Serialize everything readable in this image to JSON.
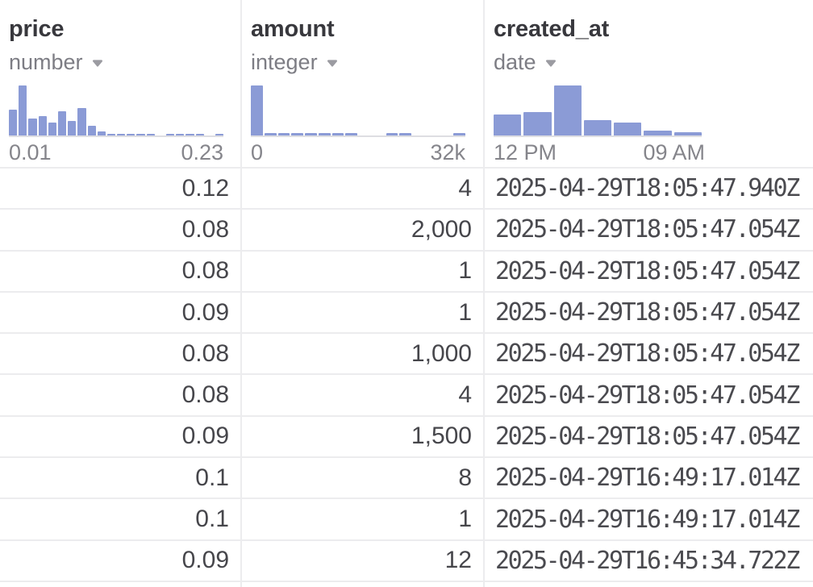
{
  "columns": [
    {
      "name": "price",
      "type": "number",
      "min_label": "0.01",
      "max_label": "0.23",
      "values": [
        "0.12",
        "0.08",
        "0.08",
        "0.09",
        "0.08",
        "0.08",
        "0.09",
        "0.1",
        "0.1",
        "0.09"
      ]
    },
    {
      "name": "amount",
      "type": "integer",
      "min_label": "0",
      "max_label": "32k",
      "values": [
        "4",
        "2,000",
        "1",
        "1",
        "1,000",
        "4",
        "1,500",
        "8",
        "1",
        "12"
      ]
    },
    {
      "name": "created_at",
      "type": "date",
      "min_label": "12 PM",
      "max_label": "09 AM",
      "values": [
        "2025-04-29T18:05:47.940Z",
        "2025-04-29T18:05:47.054Z",
        "2025-04-29T18:05:47.054Z",
        "2025-04-29T18:05:47.054Z",
        "2025-04-29T18:05:47.054Z",
        "2025-04-29T18:05:47.054Z",
        "2025-04-29T18:05:47.054Z",
        "2025-04-29T16:49:17.014Z",
        "2025-04-29T16:49:17.014Z",
        "2025-04-29T16:45:34.722Z"
      ]
    }
  ],
  "chart_data": [
    {
      "type": "bar",
      "title": "price distribution histogram",
      "x_min_label": "0.01",
      "x_max_label": "0.23",
      "values_normalized": [
        0.52,
        1.0,
        0.34,
        0.38,
        0.26,
        0.48,
        0.29,
        0.55,
        0.19,
        0.08,
        0.04,
        0.04,
        0.04,
        0.04,
        0.04,
        0,
        0.04,
        0.04,
        0.04,
        0.04,
        0,
        0.04
      ]
    },
    {
      "type": "bar",
      "title": "amount distribution histogram",
      "x_min_label": "0",
      "x_max_label": "32k",
      "values_normalized": [
        1.0,
        0.05,
        0.05,
        0.05,
        0.05,
        0.05,
        0.05,
        0.05,
        0,
        0,
        0.05,
        0.05,
        0,
        0,
        0,
        0.05
      ]
    },
    {
      "type": "bar",
      "title": "created_at distribution histogram",
      "x_min_label": "12 PM",
      "x_max_label": "09 AM",
      "values_normalized": [
        0.42,
        0.47,
        1.0,
        0.31,
        0.26,
        0.1,
        0.06
      ]
    }
  ],
  "colors": {
    "histogram_bar": "#8B9BD6",
    "title_text": "#38383d",
    "type_text": "#7d7d84",
    "axis_text": "#85858b",
    "cell_text": "#46464b",
    "separator": "#ececee"
  },
  "icons": {
    "type_dropdown": "chevron-down-icon"
  }
}
